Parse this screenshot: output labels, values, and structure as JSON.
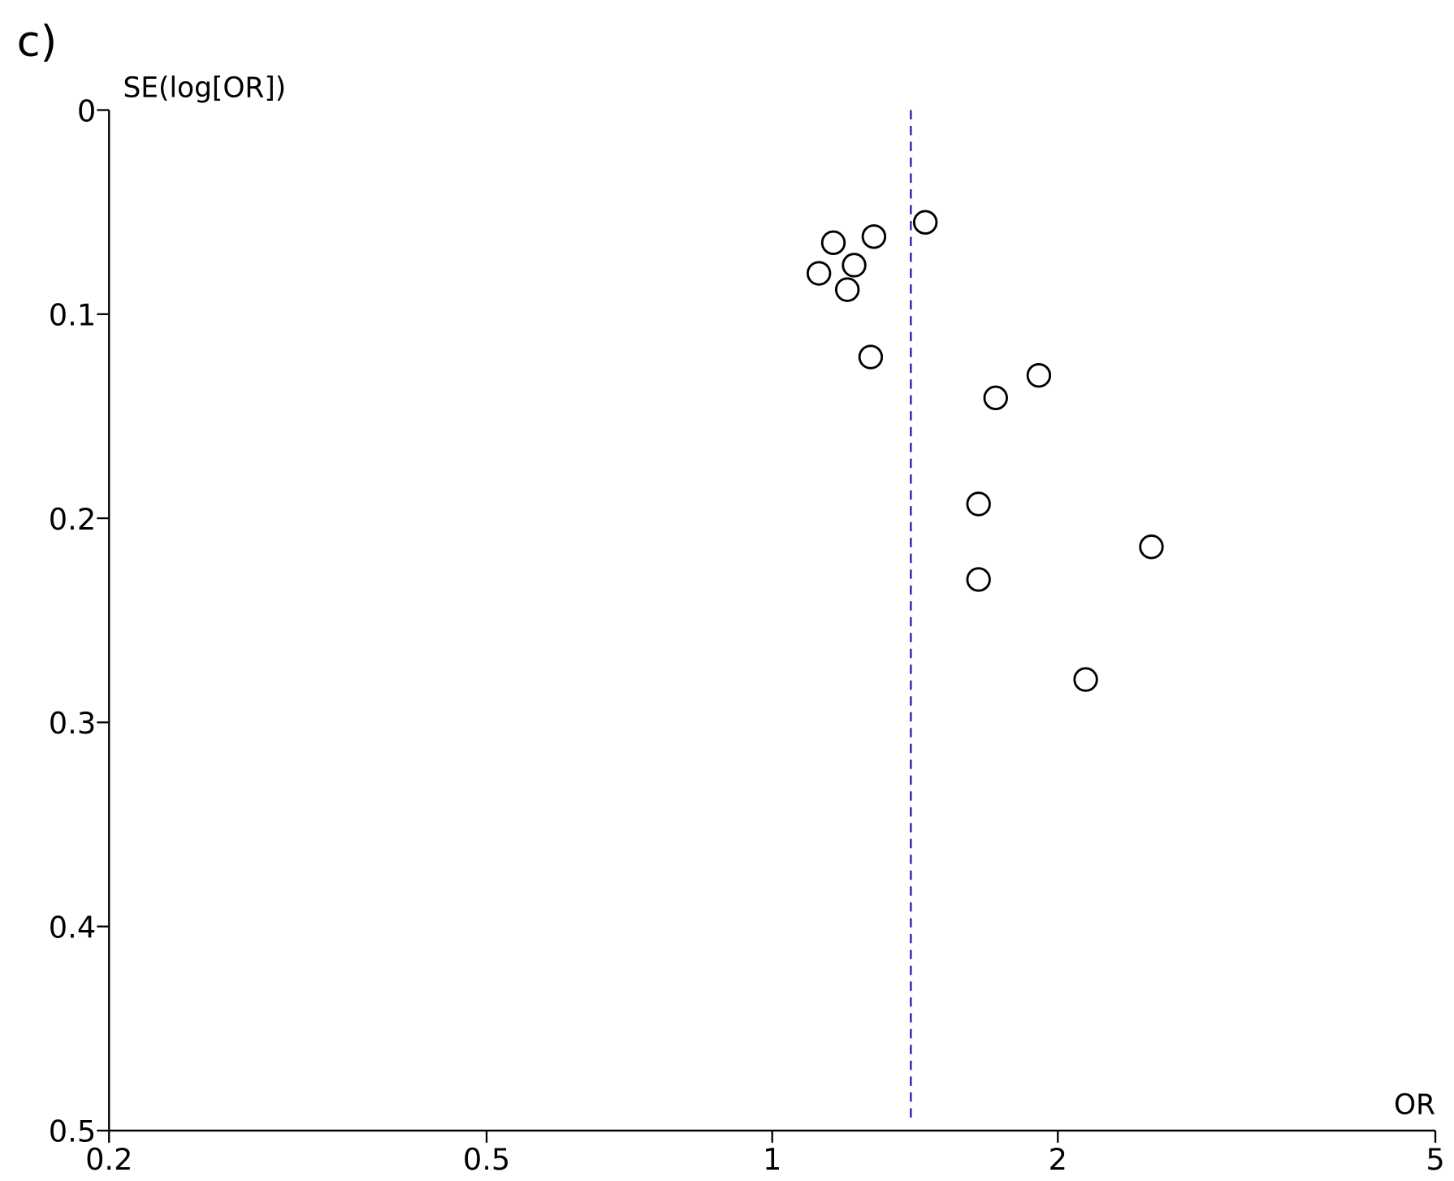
{
  "chart_data": {
    "type": "scatter",
    "panel_label": "c)",
    "y_label": "SE(log[OR])",
    "x_label": "OR",
    "x_scale": "log",
    "y_inverted": true,
    "xlim": [
      0.2,
      5
    ],
    "xticks": [
      0.2,
      0.5,
      1,
      2,
      5
    ],
    "ylim": [
      0,
      0.5
    ],
    "yticks": [
      0,
      0.1,
      0.2,
      0.3,
      0.4,
      0.5
    ],
    "marker_color": "#000000",
    "reference_line": {
      "x": 1.4,
      "color": "#1f1fa8"
    },
    "x": [
      1.45,
      1.28,
      1.16,
      1.22,
      1.12,
      1.2,
      1.27,
      1.91,
      1.72,
      1.65,
      2.51,
      1.65,
      2.14
    ],
    "values": [
      0.055,
      0.062,
      0.065,
      0.076,
      0.08,
      0.088,
      0.121,
      0.13,
      0.141,
      0.193,
      0.214,
      0.23,
      0.279
    ]
  }
}
